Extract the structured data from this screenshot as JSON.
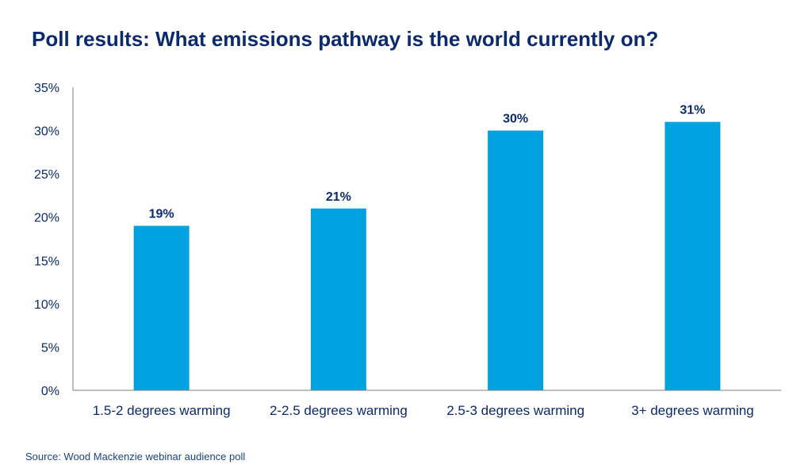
{
  "title": "Poll results: What emissions pathway is the world currently on?",
  "source": "Source: Wood Mackenzie webinar audience poll",
  "colors": {
    "bar": "#00a3e0",
    "text": "#0b2a6e",
    "axis": "#7f7f7f"
  },
  "chart_data": {
    "type": "bar",
    "title": "Poll results: What emissions pathway is the world currently on?",
    "categories": [
      "1.5-2 degrees warming",
      "2-2.5 degrees warming",
      "2.5-3 degrees warming",
      "3+ degrees warming"
    ],
    "values": [
      19,
      21,
      30,
      31
    ],
    "data_labels": [
      "19%",
      "21%",
      "30%",
      "31%"
    ],
    "yticks": [
      0,
      5,
      10,
      15,
      20,
      25,
      30,
      35
    ],
    "ytick_labels": [
      "0%",
      "5%",
      "10%",
      "15%",
      "20%",
      "25%",
      "30%",
      "35%"
    ],
    "ylim": [
      0,
      35
    ],
    "xlabel": "",
    "ylabel": "",
    "grid": false,
    "legend": "none"
  }
}
